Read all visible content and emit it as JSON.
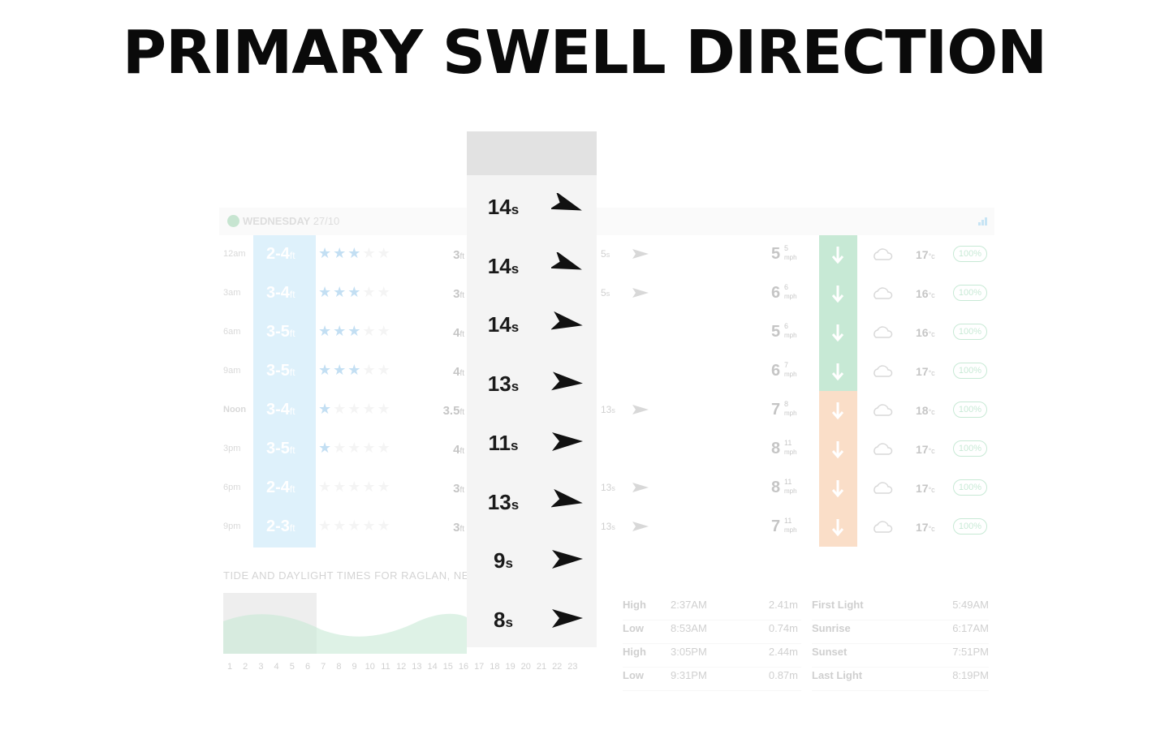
{
  "title": "PRIMARY SWELL DIRECTION",
  "forecast": {
    "day_name": "WEDNESDAY",
    "day_date": "27/10",
    "rows": [
      {
        "time": "12am",
        "wave": "2-4",
        "wave_unit": "ft",
        "rating": 3,
        "swell1": "3",
        "swell1_unit": "ft",
        "swell2_period": "5",
        "swell2_unit": "s",
        "wind": "5",
        "gust": "5",
        "wind_unit": "mph",
        "wind_type": "offshore",
        "weather": "cloud-icon",
        "temp": "17",
        "temp_unit": "°c",
        "prob": "100%"
      },
      {
        "time": "3am",
        "wave": "3-4",
        "wave_unit": "ft",
        "rating": 3,
        "swell1": "3",
        "swell1_unit": "ft",
        "swell2_period": "5",
        "swell2_unit": "s",
        "wind": "6",
        "gust": "6",
        "wind_unit": "mph",
        "wind_type": "offshore",
        "weather": "cloud-icon",
        "temp": "16",
        "temp_unit": "°c",
        "prob": "100%"
      },
      {
        "time": "6am",
        "wave": "3-5",
        "wave_unit": "ft",
        "rating": 3,
        "swell1": "4",
        "swell1_unit": "ft",
        "swell2_period": "",
        "swell2_unit": "",
        "wind": "5",
        "gust": "6",
        "wind_unit": "mph",
        "wind_type": "offshore",
        "weather": "cloud-icon",
        "temp": "16",
        "temp_unit": "°c",
        "prob": "100%"
      },
      {
        "time": "9am",
        "wave": "3-5",
        "wave_unit": "ft",
        "rating": 3,
        "swell1": "4",
        "swell1_unit": "ft",
        "swell2_period": "",
        "swell2_unit": "",
        "wind": "6",
        "gust": "7",
        "wind_unit": "mph",
        "wind_type": "offshore",
        "weather": "cloud-icon",
        "temp": "17",
        "temp_unit": "°c",
        "prob": "100%"
      },
      {
        "time": "Noon",
        "wave": "3-4",
        "wave_unit": "ft",
        "rating": 1,
        "swell1": "3.5",
        "swell1_unit": "ft",
        "swell2_period": "13",
        "swell2_unit": "s",
        "wind": "7",
        "gust": "8",
        "wind_unit": "mph",
        "wind_type": "onshore",
        "weather": "sun-rain-icon",
        "temp": "18",
        "temp_unit": "°c",
        "prob": "100%"
      },
      {
        "time": "3pm",
        "wave": "3-5",
        "wave_unit": "ft",
        "rating": 1,
        "swell1": "4",
        "swell1_unit": "ft",
        "swell2_period": "",
        "swell2_unit": "",
        "wind": "8",
        "gust": "11",
        "wind_unit": "mph",
        "wind_type": "onshore",
        "weather": "sun-rain-icon",
        "temp": "17",
        "temp_unit": "°c",
        "prob": "100%"
      },
      {
        "time": "6pm",
        "wave": "2-4",
        "wave_unit": "ft",
        "rating": 0,
        "swell1": "3",
        "swell1_unit": "ft",
        "swell2_period": "13",
        "swell2_unit": "s",
        "wind": "8",
        "gust": "11",
        "wind_unit": "mph",
        "wind_type": "onshore",
        "weather": "sun-rain-icon",
        "temp": "17",
        "temp_unit": "°c",
        "prob": "100%"
      },
      {
        "time": "9pm",
        "wave": "2-3",
        "wave_unit": "ft",
        "rating": 0,
        "swell1": "3",
        "swell1_unit": "ft",
        "swell2_period": "13",
        "swell2_unit": "s",
        "wind": "7",
        "gust": "11",
        "wind_unit": "mph",
        "wind_type": "onshore",
        "weather": "sun-rain-icon",
        "temp": "17",
        "temp_unit": "°c",
        "prob": "100%"
      }
    ]
  },
  "tide": {
    "title": "TIDE AND DAYLIGHT TIMES FOR RAGLAN, NEW",
    "axis": [
      "1",
      "2",
      "3",
      "4",
      "5",
      "6",
      "7",
      "8",
      "9",
      "10",
      "11",
      "12",
      "13",
      "14",
      "15",
      "16",
      "17",
      "18",
      "19",
      "20",
      "21",
      "22",
      "23"
    ],
    "tides": [
      {
        "type": "High",
        "time": "2:37AM",
        "height": "2.41m"
      },
      {
        "type": "Low",
        "time": "8:53AM",
        "height": "0.74m"
      },
      {
        "type": "High",
        "time": "3:05PM",
        "height": "2.44m"
      },
      {
        "type": "Low",
        "time": "9:31PM",
        "height": "0.87m"
      }
    ],
    "daylight": [
      {
        "label": "First Light",
        "time": "5:49AM"
      },
      {
        "label": "Sunrise",
        "time": "6:17AM"
      },
      {
        "label": "Sunset",
        "time": "7:51PM"
      },
      {
        "label": "Last Light",
        "time": "8:19PM"
      }
    ]
  },
  "primary_swell": [
    {
      "period": "14",
      "unit": "s",
      "direction_deg": 20
    },
    {
      "period": "14",
      "unit": "s",
      "direction_deg": 20
    },
    {
      "period": "14",
      "unit": "s",
      "direction_deg": 10
    },
    {
      "period": "13",
      "unit": "s",
      "direction_deg": 5
    },
    {
      "period": "11",
      "unit": "s",
      "direction_deg": 0
    },
    {
      "period": "13",
      "unit": "s",
      "direction_deg": 10
    },
    {
      "period": "9",
      "unit": "s",
      "direction_deg": 0
    },
    {
      "period": "8",
      "unit": "s",
      "direction_deg": 0
    }
  ],
  "colors": {
    "offshore": "#3ab36a",
    "onshore": "#f08a3c",
    "wave": "#8ccff2",
    "star": "#2c8fd6"
  }
}
